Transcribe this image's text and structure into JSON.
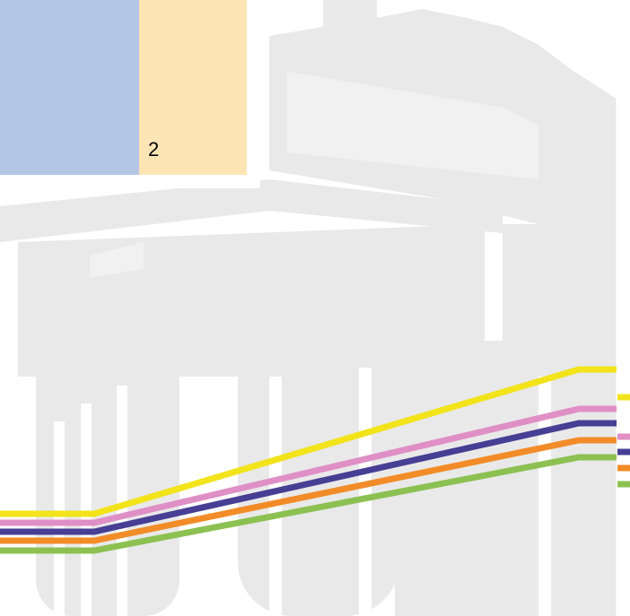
{
  "label": "2"
}
